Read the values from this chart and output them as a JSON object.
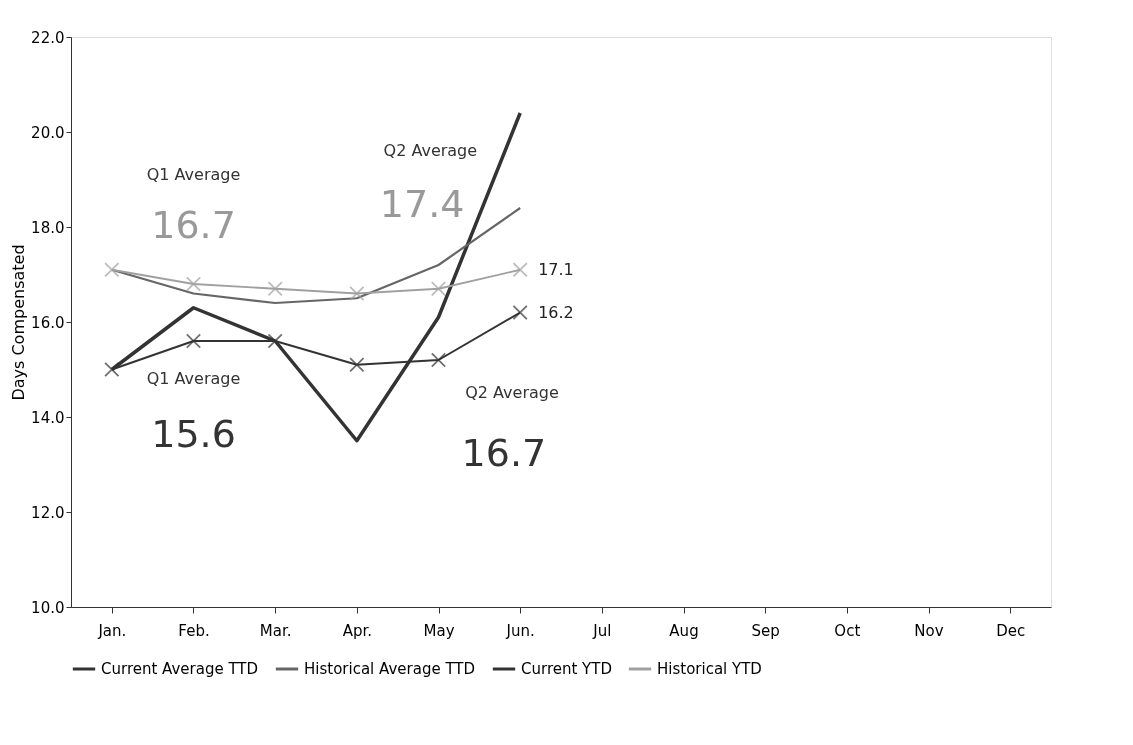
{
  "chart_data": {
    "type": "line",
    "categories": [
      "Jan.",
      "Feb.",
      "Mar.",
      "Apr.",
      "May",
      "Jun.",
      "Jul",
      "Aug",
      "Sep",
      "Oct",
      "Nov",
      "Dec"
    ],
    "ylabel": "Days Compensated",
    "ylim": [
      10,
      22
    ],
    "yticks": [
      {
        "value": 10,
        "label": "10.0"
      },
      {
        "value": 12,
        "label": "12.0"
      },
      {
        "value": 14,
        "label": "14.0"
      },
      {
        "value": 16,
        "label": "16.0"
      },
      {
        "value": 18,
        "label": "18.0"
      },
      {
        "value": 20,
        "label": "20.0"
      },
      {
        "value": 22,
        "label": "22.0"
      }
    ],
    "grid": false,
    "legend": "bottom",
    "series": [
      {
        "name": "Current Average TTD",
        "color": "#333333",
        "marker": "none",
        "values": [
          15.0,
          16.3,
          15.6,
          13.5,
          16.1,
          20.4,
          null,
          null,
          null,
          null,
          null,
          null
        ]
      },
      {
        "name": "Historical Average TTD",
        "color": "#666666",
        "marker": "none",
        "values": [
          17.1,
          16.6,
          16.4,
          16.5,
          17.2,
          18.4,
          null,
          null,
          null,
          null,
          null,
          null
        ]
      },
      {
        "name": "Current YTD",
        "color": "#333333",
        "marker": "cross",
        "values": [
          15.0,
          15.6,
          15.6,
          15.1,
          15.2,
          16.2,
          null,
          null,
          null,
          null,
          null,
          null
        ],
        "value_labels": [
          null,
          null,
          null,
          null,
          null,
          "16.2",
          null,
          null,
          null,
          null,
          null,
          null
        ]
      },
      {
        "name": "Historical YTD",
        "color": "#a0a0a0",
        "marker": "cross",
        "values": [
          17.1,
          16.8,
          16.7,
          16.6,
          16.7,
          17.1,
          null,
          null,
          null,
          null,
          null,
          null
        ],
        "value_labels": [
          null,
          null,
          null,
          null,
          null,
          "17.1",
          null,
          null,
          null,
          null,
          null,
          null
        ]
      }
    ],
    "annotations": [
      "Q1 Average",
      "16.7",
      "Q2 Average",
      "17.4",
      "Q1 Average",
      "15.6",
      "Q2 Average",
      "16.7"
    ]
  }
}
